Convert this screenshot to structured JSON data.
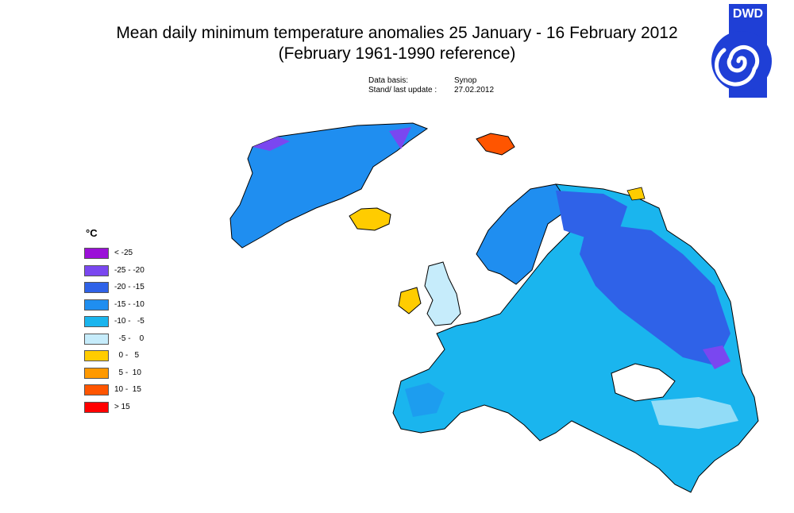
{
  "title_line1": "Mean daily minimum temperature anomalies 25 January - 16 February 2012",
  "title_line2": "(February 1961-1990 reference)",
  "meta": {
    "data_basis_label": "Data basis:",
    "data_basis_value": "Synop",
    "update_label": "Stand/ last update :",
    "update_value": "27.02.2012"
  },
  "logo_text": "DWD",
  "legend": {
    "unit": "°C",
    "classes": [
      {
        "label": "< -25",
        "color": "#9b10d8"
      },
      {
        "label": "-25 - -20",
        "color": "#7a47f0"
      },
      {
        "label": "-20 - -15",
        "color": "#2f62e8"
      },
      {
        "label": "-15 - -10",
        "color": "#1f8ef0"
      },
      {
        "label": "-10 -   -5",
        "color": "#1ab5ee"
      },
      {
        "label": "  -5 -    0",
        "color": "#c6ecfb"
      },
      {
        "label": "  0 -   5",
        "color": "#ffcc00"
      },
      {
        "label": "  5 -  10",
        "color": "#ff9900"
      },
      {
        "label": "10 -  15",
        "color": "#ff5500"
      },
      {
        "label": "> 15",
        "color": "#ff0000"
      }
    ]
  }
}
